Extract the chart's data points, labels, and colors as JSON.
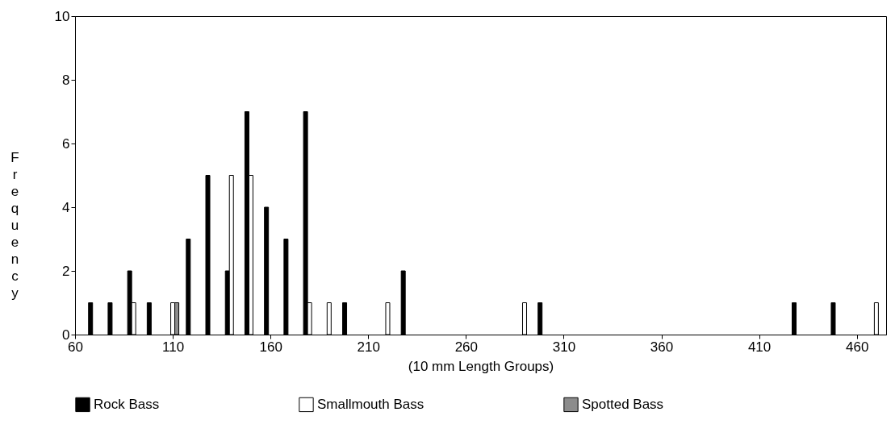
{
  "chart_data": {
    "type": "bar",
    "xlabel": "(10 mm Length Groups)",
    "ylabel": "Frequency",
    "xlim": [
      60,
      475
    ],
    "xticks": [
      60,
      110,
      160,
      210,
      260,
      310,
      360,
      410,
      460
    ],
    "ylim": [
      0,
      10
    ],
    "yticks": [
      0,
      2,
      4,
      6,
      8,
      10
    ],
    "grid": false,
    "legend": "bottom",
    "series": [
      {
        "name": "Rock Bass",
        "color": "#000000",
        "x": [
          70,
          80,
          90,
          100,
          120,
          130,
          140,
          150,
          160,
          170,
          180,
          200,
          230,
          300,
          430,
          450
        ],
        "values": [
          1,
          1,
          2,
          1,
          3,
          5,
          2,
          7,
          4,
          3,
          7,
          1,
          2,
          1,
          1,
          1
        ]
      },
      {
        "name": "Smallmouth Bass",
        "color": "#ffffff",
        "x": [
          90,
          110,
          140,
          150,
          180,
          190,
          220,
          290,
          470
        ],
        "values": [
          1,
          1,
          5,
          5,
          1,
          1,
          1,
          1,
          1
        ]
      },
      {
        "name": "Spotted Bass",
        "color": "#8c8c8c",
        "x": [
          110
        ],
        "values": [
          1
        ]
      }
    ]
  }
}
